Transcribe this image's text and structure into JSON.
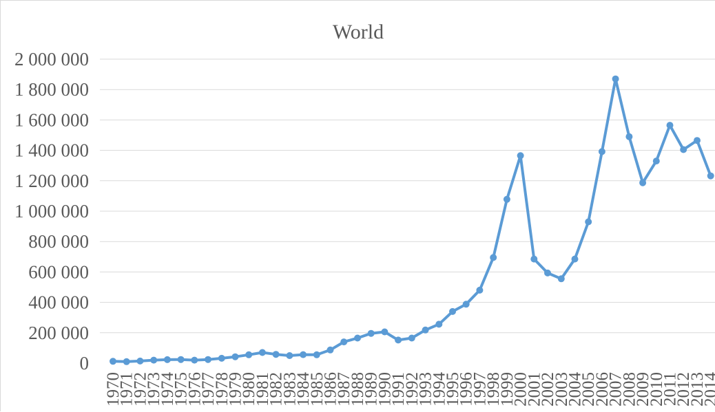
{
  "chart_data": {
    "type": "line",
    "title": "World",
    "xlabel": "",
    "ylabel": "",
    "ylim": [
      0,
      2000000
    ],
    "yticks": [
      0,
      200000,
      400000,
      600000,
      800000,
      1000000,
      1200000,
      1400000,
      1600000,
      1800000,
      2000000
    ],
    "ytick_labels": [
      "0",
      "200 000",
      "400 000",
      "600 000",
      "800 000",
      "1 000 000",
      "1 200 000",
      "1 400 000",
      "1 600 000",
      "1 800 000",
      "2 000 000"
    ],
    "grid": true,
    "legend": "none",
    "color": "#5b9bd5",
    "categories": [
      "1970",
      "1971",
      "1972",
      "1973",
      "1974",
      "1975",
      "1976",
      "1977",
      "1978",
      "1979",
      "1980",
      "1981",
      "1982",
      "1983",
      "1984",
      "1985",
      "1986",
      "1987",
      "1988",
      "1989",
      "1990",
      "1991",
      "1992",
      "1993",
      "1994",
      "1995",
      "1996",
      "1997",
      "1998",
      "1999",
      "2000",
      "2001",
      "2002",
      "2003",
      "2004",
      "2005",
      "2006",
      "2007",
      "2008",
      "2009",
      "2010",
      "2011",
      "2012",
      "2013",
      "2014"
    ],
    "values": [
      12000,
      10000,
      14000,
      20000,
      23000,
      24000,
      20000,
      24000,
      32000,
      42000,
      55000,
      70000,
      58000,
      50000,
      56000,
      55000,
      87000,
      140000,
      165000,
      196000,
      206000,
      152000,
      165000,
      218000,
      256000,
      340000,
      388000,
      480000,
      695000,
      1078000,
      1365000,
      685000,
      593000,
      555000,
      685000,
      930000,
      1392000,
      1870000,
      1490000,
      1187000,
      1330000,
      1565000,
      1405000,
      1465000,
      1232000
    ]
  }
}
